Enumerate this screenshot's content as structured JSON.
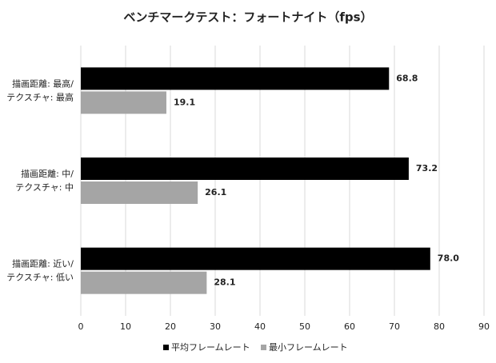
{
  "chart_data": {
    "type": "hbar",
    "title": "ベンチマークテスト：フォートナイト（fps）",
    "categories": [
      [
        "描画距離: 最高/",
        "テクスチャ: 最高"
      ],
      [
        "描画距離: 中/",
        "テクスチャ: 中"
      ],
      [
        "描画距離: 近い/",
        "テクスチャ: 低い"
      ]
    ],
    "series": [
      {
        "name": "平均フレームレート",
        "color": "#000000",
        "values": [
          68.8,
          73.2,
          78.0
        ],
        "value_labels": [
          "68.8",
          "73.2",
          "78.0"
        ]
      },
      {
        "name": "最小フレームレート",
        "color": "#a5a5a5",
        "values": [
          19.1,
          26.1,
          28.1
        ],
        "value_labels": [
          "19.1",
          "26.1",
          "28.1"
        ]
      }
    ],
    "xlim": [
      0,
      90
    ],
    "xticks": [
      0,
      10,
      20,
      30,
      40,
      50,
      60,
      70,
      80,
      90
    ],
    "grid": true,
    "legend": "bottom"
  }
}
